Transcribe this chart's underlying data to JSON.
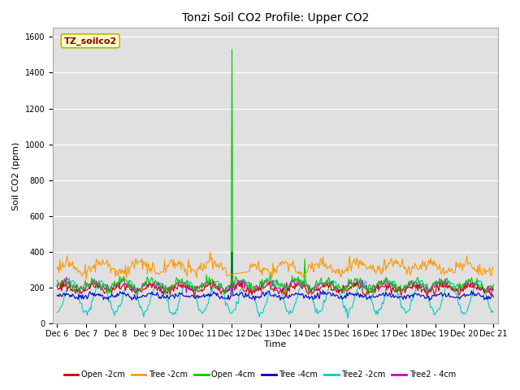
{
  "title": "Tonzi Soil CO2 Profile: Upper CO2",
  "ylabel": "Soil CO2 (ppm)",
  "xlabel": "Time",
  "watermark": "TZ_soilco2",
  "ylim": [
    0,
    1650
  ],
  "yticks": [
    0,
    200,
    400,
    600,
    800,
    1000,
    1200,
    1400,
    1600
  ],
  "xstart": 6,
  "xend": 21,
  "n_points": 480,
  "background_color": "#e0e0e0",
  "spike_index": 192,
  "spike_value": 1530,
  "legend_labels": [
    "Open -2cm",
    "Tree -2cm",
    "Open -4cm",
    "Tree -4cm",
    "Tree2 -2cm",
    "Tree2 - 4cm"
  ],
  "legend_colors": [
    "#cc0000",
    "#ff9900",
    "#00cc00",
    "#0000cc",
    "#00cccc",
    "#cc00cc"
  ],
  "title_fontsize": 10,
  "label_fontsize": 8,
  "tick_fontsize": 7
}
